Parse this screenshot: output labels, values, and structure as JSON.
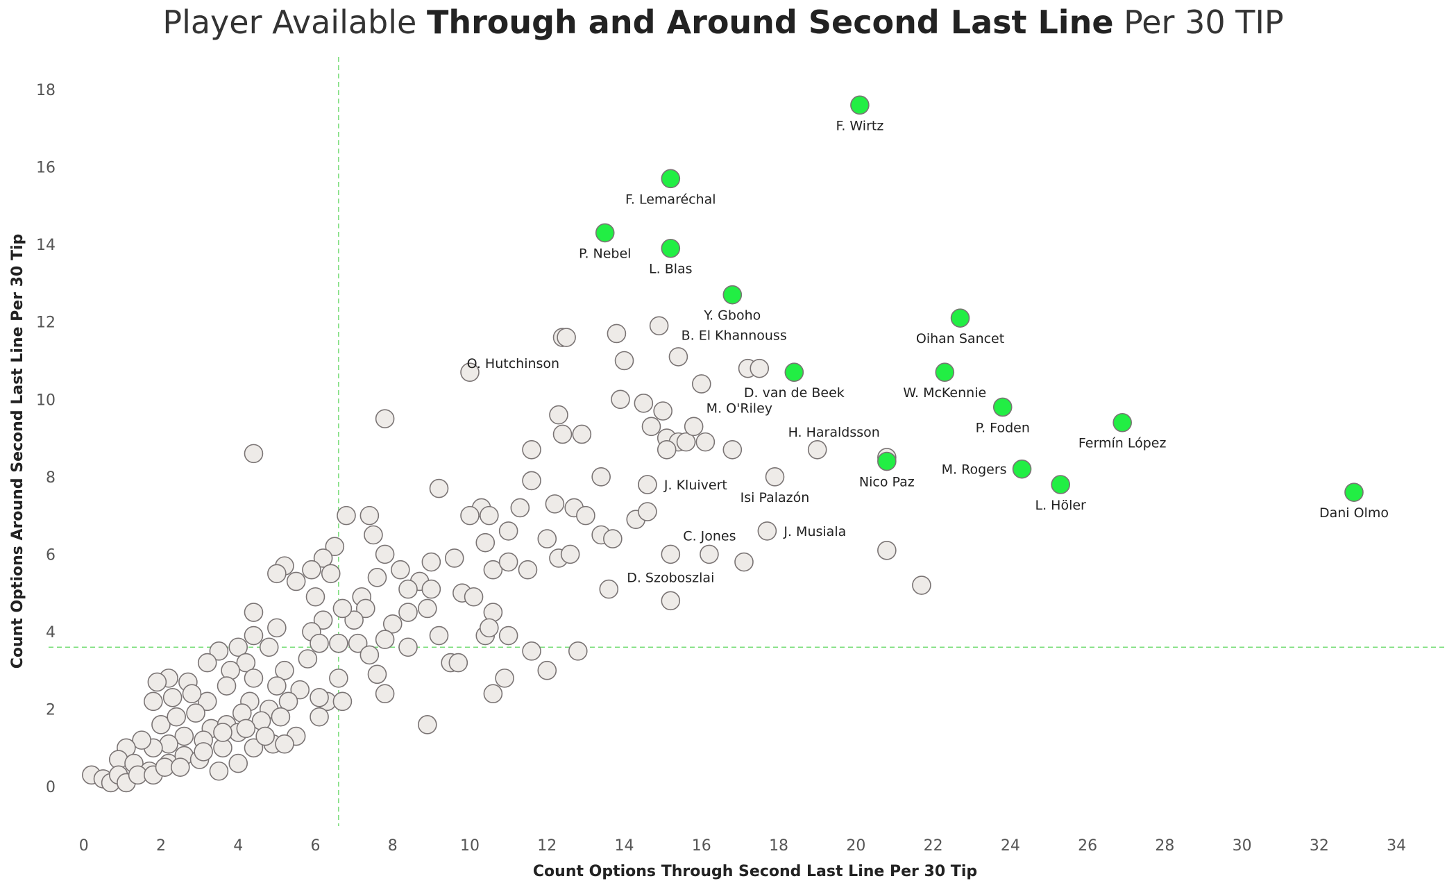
{
  "chart_data": {
    "type": "scatter",
    "title_parts": [
      "Player Available ",
      "Through and Around Second Last Line",
      " Per 30 TIP"
    ],
    "xlabel": "Count Options Through Second Last Line Per 30 Tip",
    "ylabel": "Count Options Around Second Last Line Per 30 Tip",
    "xlim": [
      -0.3,
      34.5
    ],
    "ylim": [
      -1.2,
      18.7
    ],
    "xticks": [
      0,
      2,
      4,
      6,
      8,
      10,
      12,
      14,
      16,
      18,
      20,
      22,
      24,
      26,
      28,
      30,
      32,
      34
    ],
    "yticks": [
      0,
      2,
      4,
      6,
      8,
      10,
      12,
      14,
      16,
      18
    ],
    "reference_lines": {
      "x": 6.6,
      "y": 3.6,
      "color": "#77dd77"
    },
    "colors": {
      "highlight": "#22ee44",
      "base": "#eeebe8",
      "edge": "#7a7474",
      "text": "#222222"
    },
    "highlighted": [
      {
        "name": "F. Wirtz",
        "x": 20.1,
        "y": 17.6,
        "label_pos": "below"
      },
      {
        "name": "F. Lemaréchal",
        "x": 15.2,
        "y": 15.7,
        "label_pos": "below"
      },
      {
        "name": "P. Nebel",
        "x": 13.5,
        "y": 14.3,
        "label_pos": "below"
      },
      {
        "name": "L. Blas",
        "x": 15.2,
        "y": 13.9,
        "label_pos": "below"
      },
      {
        "name": "Y. Gboho",
        "x": 16.8,
        "y": 12.7,
        "label_pos": "below"
      },
      {
        "name": "Oihan Sancet",
        "x": 22.7,
        "y": 12.1,
        "label_pos": "below"
      },
      {
        "name": "D. van de Beek",
        "x": 18.4,
        "y": 10.7,
        "label_pos": "below"
      },
      {
        "name": "W. McKennie",
        "x": 22.3,
        "y": 10.7,
        "label_pos": "below"
      },
      {
        "name": "P. Foden",
        "x": 23.8,
        "y": 9.8,
        "label_pos": "below"
      },
      {
        "name": "Fermín López",
        "x": 26.9,
        "y": 9.4,
        "label_pos": "below"
      },
      {
        "name": "Nico Paz",
        "x": 20.8,
        "y": 8.4,
        "label_pos": "below"
      },
      {
        "name": "M. Rogers",
        "x": 24.3,
        "y": 8.2,
        "label_pos": "left"
      },
      {
        "name": "L. Höler",
        "x": 25.3,
        "y": 7.8,
        "label_pos": "below"
      },
      {
        "name": "Dani Olmo",
        "x": 32.9,
        "y": 7.6,
        "label_pos": "below"
      }
    ],
    "labeled_others": [
      {
        "name": "B. El Khannouss",
        "x": 14.9,
        "y": 11.9,
        "label_pos": "below-right"
      },
      {
        "name": "O. Hutchinson",
        "x": 12.5,
        "y": 11.6,
        "label_pos": "below-left"
      },
      {
        "name": "M. O'Riley",
        "x": 15.8,
        "y": 9.3,
        "label_pos": "above-right"
      },
      {
        "name": "H. Haraldsson",
        "x": 20.8,
        "y": 8.5,
        "label_pos": "above-left"
      },
      {
        "name": "J. Kluivert",
        "x": 14.6,
        "y": 7.8,
        "label_pos": "right"
      },
      {
        "name": "Isi Palazón",
        "x": 17.9,
        "y": 8.0,
        "label_pos": "below"
      },
      {
        "name": "C. Jones",
        "x": 15.2,
        "y": 6.0,
        "label_pos": "above-right"
      },
      {
        "name": "J. Musiala",
        "x": 17.7,
        "y": 6.6,
        "label_pos": "right"
      },
      {
        "name": "D. Szoboszlai",
        "x": 15.2,
        "y": 4.8,
        "label_pos": "above"
      }
    ],
    "others": [
      [
        4.4,
        8.6
      ],
      [
        7.8,
        9.5
      ],
      [
        10.0,
        10.7
      ],
      [
        12.4,
        11.6
      ],
      [
        13.8,
        11.7
      ],
      [
        14.0,
        11.0
      ],
      [
        15.4,
        11.1
      ],
      [
        16.0,
        10.4
      ],
      [
        17.2,
        10.8
      ],
      [
        17.5,
        10.8
      ],
      [
        13.9,
        10.0
      ],
      [
        14.5,
        9.9
      ],
      [
        12.3,
        9.6
      ],
      [
        15.0,
        9.7
      ],
      [
        14.7,
        9.3
      ],
      [
        12.4,
        9.1
      ],
      [
        12.9,
        9.1
      ],
      [
        15.1,
        9.0
      ],
      [
        15.4,
        8.9
      ],
      [
        15.6,
        8.9
      ],
      [
        16.1,
        8.9
      ],
      [
        15.1,
        8.7
      ],
      [
        11.6,
        8.7
      ],
      [
        16.8,
        8.7
      ],
      [
        19.0,
        8.7
      ],
      [
        13.4,
        8.0
      ],
      [
        11.6,
        7.9
      ],
      [
        14.6,
        7.8
      ],
      [
        9.2,
        7.7
      ],
      [
        10.3,
        7.2
      ],
      [
        11.3,
        7.2
      ],
      [
        12.2,
        7.3
      ],
      [
        12.7,
        7.2
      ],
      [
        13.0,
        7.0
      ],
      [
        14.3,
        6.9
      ],
      [
        14.6,
        7.1
      ],
      [
        6.8,
        7.0
      ],
      [
        7.4,
        7.0
      ],
      [
        10.0,
        7.0
      ],
      [
        10.5,
        7.0
      ],
      [
        13.4,
        6.5
      ],
      [
        13.7,
        6.4
      ],
      [
        11.0,
        6.6
      ],
      [
        10.4,
        6.3
      ],
      [
        12.0,
        6.4
      ],
      [
        12.3,
        5.9
      ],
      [
        12.6,
        6.0
      ],
      [
        16.2,
        6.0
      ],
      [
        17.1,
        5.8
      ],
      [
        20.8,
        6.1
      ],
      [
        21.7,
        5.2
      ],
      [
        13.6,
        5.1
      ],
      [
        11.5,
        5.6
      ],
      [
        10.6,
        5.6
      ],
      [
        11.0,
        5.8
      ],
      [
        9.6,
        5.9
      ],
      [
        9.0,
        5.8
      ],
      [
        8.7,
        5.3
      ],
      [
        8.2,
        5.6
      ],
      [
        7.8,
        6.0
      ],
      [
        7.5,
        6.5
      ],
      [
        6.5,
        6.2
      ],
      [
        6.2,
        5.9
      ],
      [
        6.4,
        5.5
      ],
      [
        5.2,
        5.7
      ],
      [
        5.0,
        5.5
      ],
      [
        5.5,
        5.3
      ],
      [
        5.9,
        5.6
      ],
      [
        6.0,
        4.9
      ],
      [
        7.2,
        4.9
      ],
      [
        7.6,
        5.4
      ],
      [
        8.4,
        5.1
      ],
      [
        9.0,
        5.1
      ],
      [
        9.8,
        5.0
      ],
      [
        10.1,
        4.9
      ],
      [
        10.6,
        4.5
      ],
      [
        8.9,
        4.6
      ],
      [
        8.4,
        4.5
      ],
      [
        8.0,
        4.2
      ],
      [
        7.3,
        4.6
      ],
      [
        7.0,
        4.3
      ],
      [
        6.7,
        4.6
      ],
      [
        6.2,
        4.3
      ],
      [
        5.9,
        4.0
      ],
      [
        6.1,
        3.7
      ],
      [
        6.6,
        3.7
      ],
      [
        7.1,
        3.7
      ],
      [
        7.8,
        3.8
      ],
      [
        8.4,
        3.6
      ],
      [
        9.2,
        3.9
      ],
      [
        10.4,
        3.9
      ],
      [
        10.5,
        4.1
      ],
      [
        11.0,
        3.9
      ],
      [
        11.6,
        3.5
      ],
      [
        12.8,
        3.5
      ],
      [
        4.4,
        4.5
      ],
      [
        4.8,
        3.6
      ],
      [
        4.4,
        3.9
      ],
      [
        4.0,
        3.6
      ],
      [
        3.5,
        3.5
      ],
      [
        5.0,
        4.1
      ],
      [
        4.2,
        3.2
      ],
      [
        7.4,
        3.4
      ],
      [
        7.6,
        2.9
      ],
      [
        9.5,
        3.2
      ],
      [
        9.7,
        3.2
      ],
      [
        10.9,
        2.8
      ],
      [
        12.0,
        3.0
      ],
      [
        10.6,
        2.4
      ],
      [
        8.9,
        1.6
      ],
      [
        7.8,
        2.4
      ],
      [
        6.6,
        2.8
      ],
      [
        6.3,
        2.2
      ],
      [
        5.8,
        3.3
      ],
      [
        5.2,
        3.0
      ],
      [
        5.0,
        2.6
      ],
      [
        4.4,
        2.8
      ],
      [
        3.8,
        3.0
      ],
      [
        3.2,
        3.2
      ],
      [
        2.7,
        2.7
      ],
      [
        2.2,
        2.8
      ],
      [
        1.9,
        2.7
      ],
      [
        6.7,
        2.2
      ],
      [
        6.1,
        2.3
      ],
      [
        5.6,
        2.5
      ],
      [
        5.3,
        2.2
      ],
      [
        4.8,
        2.0
      ],
      [
        4.3,
        2.2
      ],
      [
        3.7,
        2.6
      ],
      [
        3.2,
        2.2
      ],
      [
        2.8,
        2.4
      ],
      [
        2.3,
        2.3
      ],
      [
        1.8,
        2.2
      ],
      [
        2.0,
        1.6
      ],
      [
        2.4,
        1.8
      ],
      [
        2.9,
        1.9
      ],
      [
        3.3,
        1.5
      ],
      [
        3.7,
        1.6
      ],
      [
        4.1,
        1.9
      ],
      [
        4.6,
        1.7
      ],
      [
        5.1,
        1.8
      ],
      [
        5.5,
        1.3
      ],
      [
        6.1,
        1.8
      ],
      [
        4.9,
        1.1
      ],
      [
        4.4,
        1.0
      ],
      [
        4.0,
        1.4
      ],
      [
        3.6,
        1.0
      ],
      [
        3.1,
        1.2
      ],
      [
        2.6,
        1.3
      ],
      [
        2.2,
        1.1
      ],
      [
        1.8,
        1.0
      ],
      [
        1.5,
        1.2
      ],
      [
        1.1,
        1.0
      ],
      [
        0.9,
        0.7
      ],
      [
        1.3,
        0.6
      ],
      [
        1.7,
        0.4
      ],
      [
        2.2,
        0.6
      ],
      [
        2.6,
        0.8
      ],
      [
        3.0,
        0.7
      ],
      [
        3.5,
        0.4
      ],
      [
        4.0,
        0.6
      ],
      [
        0.2,
        0.3
      ],
      [
        0.5,
        0.2
      ],
      [
        0.7,
        0.1
      ],
      [
        0.9,
        0.3
      ],
      [
        1.1,
        0.1
      ],
      [
        1.4,
        0.3
      ],
      [
        1.8,
        0.3
      ],
      [
        2.1,
        0.5
      ],
      [
        2.5,
        0.5
      ],
      [
        3.1,
        0.9
      ],
      [
        3.6,
        1.4
      ],
      [
        4.2,
        1.5
      ],
      [
        4.7,
        1.3
      ],
      [
        5.2,
        1.1
      ]
    ]
  }
}
